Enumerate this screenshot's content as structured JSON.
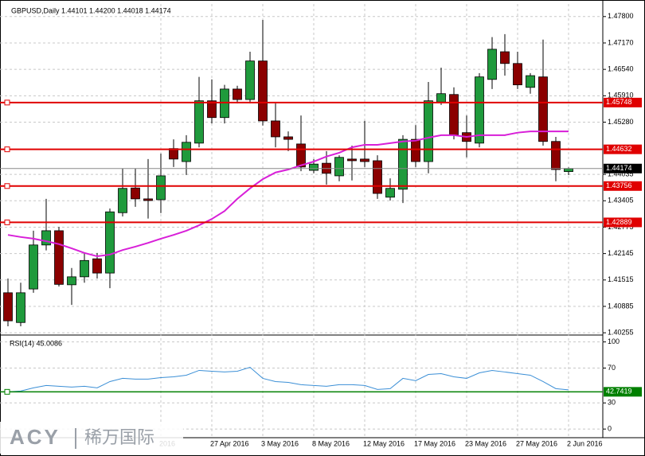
{
  "chart_data": [
    {
      "type": "candlestick",
      "title": "GBPUSD,Daily  1.44101 1.44200 1.44018 1.44174",
      "categories": [
        null,
        null,
        null,
        null,
        null,
        null,
        null,
        null,
        null,
        null,
        null,
        null,
        "2016",
        null,
        null,
        null,
        "27 Apr 2016",
        null,
        null,
        null,
        "3 May 2016",
        null,
        null,
        null,
        "8 May 2016",
        null,
        null,
        null,
        "12 May 2016",
        null,
        null,
        null,
        "17 May 2016",
        null,
        null,
        null,
        "23 May 2016",
        null,
        null,
        null,
        "27 May 2016",
        null,
        null,
        null,
        "2 Jun 2016"
      ],
      "open": [
        1.4121,
        1.405,
        1.413,
        1.4235,
        1.4269,
        1.414,
        1.4159,
        1.4202,
        1.4168,
        1.4312,
        1.4371,
        1.4345,
        1.4343,
        1.4465,
        1.4434,
        1.4478,
        1.4579,
        1.4539,
        1.4607,
        1.4582,
        1.4674,
        1.4531,
        1.4493,
        1.4476,
        1.4413,
        1.443,
        1.44,
        1.444,
        1.444,
        1.4436,
        1.4349,
        1.4368,
        1.4487,
        1.4434,
        1.4576,
        1.4594,
        1.4503,
        1.4478,
        1.463,
        1.4696,
        1.4668,
        1.4611,
        1.4636,
        1.4482,
        1.44101
      ],
      "high": [
        1.4155,
        1.4145,
        1.4269,
        1.4345,
        1.4278,
        1.418,
        1.4216,
        1.4216,
        1.4322,
        1.4417,
        1.4417,
        1.444,
        1.4453,
        1.4487,
        1.4497,
        1.4636,
        1.463,
        1.4617,
        1.4615,
        1.4696,
        1.4772,
        1.4573,
        1.4506,
        1.4544,
        1.444,
        1.4459,
        1.4449,
        1.4472,
        1.4531,
        1.4449,
        1.4394,
        1.4497,
        1.4521,
        1.4624,
        1.4658,
        1.4611,
        1.4544,
        1.4645,
        1.4731,
        1.4738,
        1.4696,
        1.4645,
        1.4725,
        1.4493,
        1.442
      ],
      "low": [
        1.4041,
        1.4041,
        1.4121,
        1.4222,
        1.4136,
        1.4092,
        1.4145,
        1.4155,
        1.4132,
        1.4303,
        1.4326,
        1.4298,
        1.4311,
        1.4421,
        1.4402,
        1.4468,
        1.4525,
        1.4525,
        1.4573,
        1.4573,
        1.452,
        1.4468,
        1.4459,
        1.4411,
        1.4406,
        1.4379,
        1.4387,
        1.4389,
        1.4421,
        1.4345,
        1.4341,
        1.4335,
        1.4421,
        1.4406,
        1.4569,
        1.4487,
        1.4444,
        1.4468,
        1.4607,
        1.4639,
        1.4607,
        1.4596,
        1.4472,
        1.4387,
        1.44018
      ],
      "close": [
        1.4054,
        1.4121,
        1.4235,
        1.4269,
        1.4141,
        1.4159,
        1.4198,
        1.4168,
        1.4314,
        1.437,
        1.4345,
        1.4341,
        1.44,
        1.444,
        1.448,
        1.4579,
        1.4539,
        1.4607,
        1.4582,
        1.4674,
        1.4531,
        1.4493,
        1.4487,
        1.4421,
        1.4428,
        1.4406,
        1.4444,
        1.4436,
        1.4434,
        1.4358,
        1.437,
        1.4487,
        1.4434,
        1.4579,
        1.4596,
        1.4497,
        1.4482,
        1.4636,
        1.4702,
        1.4668,
        1.4617,
        1.4639,
        1.4482,
        1.4415,
        1.44174
      ],
      "up_color": "#1f9a3c",
      "down_color": "#8b0000",
      "ma_color": "#d81fd8",
      "ma_values": [
        1.4259,
        1.4254,
        1.425,
        1.4244,
        1.4237,
        1.4227,
        1.4216,
        1.4208,
        1.4212,
        1.4223,
        1.4231,
        1.424,
        1.425,
        1.4259,
        1.4269,
        1.4282,
        1.4297,
        1.4316,
        1.4345,
        1.437,
        1.4392,
        1.4408,
        1.4415,
        1.4425,
        1.4434,
        1.4446,
        1.4455,
        1.4468,
        1.4474,
        1.4474,
        1.4478,
        1.4482,
        1.4484,
        1.4491,
        1.4497,
        1.4497,
        1.4493,
        1.4497,
        1.4497,
        1.4497,
        1.4503,
        1.4506,
        1.4506,
        1.4506,
        1.4506
      ],
      "levels": [
        {
          "value": 1.45748,
          "label": "1.45748"
        },
        {
          "value": 1.44632,
          "label": "1.44632"
        },
        {
          "value": 1.43756,
          "label": "1.43756"
        },
        {
          "value": 1.42889,
          "label": "1.42889"
        }
      ],
      "level_color": "#e00000",
      "last": {
        "value": 1.44174,
        "label": "1.44174"
      },
      "ylim": [
        1.4022,
        1.481
      ],
      "yticks": [
        {
          "value": 1.478,
          "label": "1.47800"
        },
        {
          "value": 1.4717,
          "label": "1.47170"
        },
        {
          "value": 1.4654,
          "label": "1.46540"
        },
        {
          "value": 1.4591,
          "label": "1.45910"
        },
        {
          "value": 1.4528,
          "label": "1.45280"
        },
        {
          "value": 1.44035,
          "label": "1.44035"
        },
        {
          "value": 1.43405,
          "label": "1.43405"
        },
        {
          "value": 1.42775,
          "label": "1.42775"
        },
        {
          "value": 1.42145,
          "label": "1.42145"
        },
        {
          "value": 1.41515,
          "label": "1.41515"
        },
        {
          "value": 1.40885,
          "label": "1.40885"
        },
        {
          "value": 1.40255,
          "label": "1.40255"
        }
      ],
      "grid": true
    },
    {
      "type": "line",
      "title": "RSI(14) 45.0086",
      "color": "#3b8fd6",
      "values": [
        42.7,
        43.6,
        47.3,
        50,
        49.1,
        48.2,
        49.1,
        47.3,
        54.5,
        58.2,
        57.3,
        57.3,
        59.1,
        60,
        61.8,
        67.3,
        66.4,
        65.5,
        66.4,
        70.9,
        58.2,
        54.5,
        53.6,
        50.9,
        50,
        49.1,
        50.9,
        50.9,
        50,
        45.5,
        46.4,
        58.2,
        55.5,
        62.7,
        63.6,
        60,
        58.2,
        64.5,
        67.3,
        65.5,
        63.6,
        61.8,
        54.5,
        46.4,
        45
      ],
      "levels": [
        {
          "value": 42.7419,
          "label": "42.7419"
        }
      ],
      "level_color": "#008000",
      "ylim": [
        -9,
        107
      ],
      "yticks": [
        0,
        30,
        70,
        100
      ],
      "grid": true
    }
  ],
  "logo": {
    "brand": "ACY",
    "name": "稀万国际"
  }
}
